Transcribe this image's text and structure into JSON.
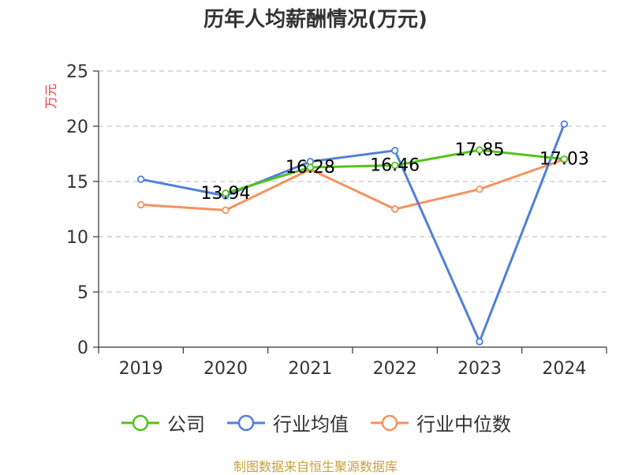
{
  "chart_data": {
    "type": "line",
    "title": "历年人均薪酬情况(万元)",
    "ylabel": "万元",
    "x": [
      "2019",
      "2020",
      "2021",
      "2022",
      "2023",
      "2024"
    ],
    "ylim": [
      0,
      25
    ],
    "yticks": [
      0,
      5,
      10,
      15,
      20,
      25
    ],
    "grid": true,
    "legend_position": "bottom",
    "series": [
      {
        "name": "公司",
        "color": "#52c41a",
        "values": [
          null,
          13.94,
          16.28,
          16.46,
          17.85,
          17.03
        ],
        "labels": [
          null,
          "13.94",
          "16.28",
          "16.46",
          "17.85",
          "17.03"
        ]
      },
      {
        "name": "行业均值",
        "color": "#4f7fd8",
        "values": [
          15.2,
          13.7,
          16.8,
          17.8,
          0.5,
          20.2
        ]
      },
      {
        "name": "行业中位数",
        "color": "#f5925e",
        "values": [
          12.9,
          12.4,
          16.1,
          12.5,
          14.3,
          17.0
        ]
      }
    ]
  },
  "source": {
    "text": "制图数据来自恒生聚源数据库",
    "color": "#c8a23c"
  },
  "axis_color": "#333333",
  "grid_color": "#c8c8c8",
  "ylabel_color": "#e03c3c"
}
